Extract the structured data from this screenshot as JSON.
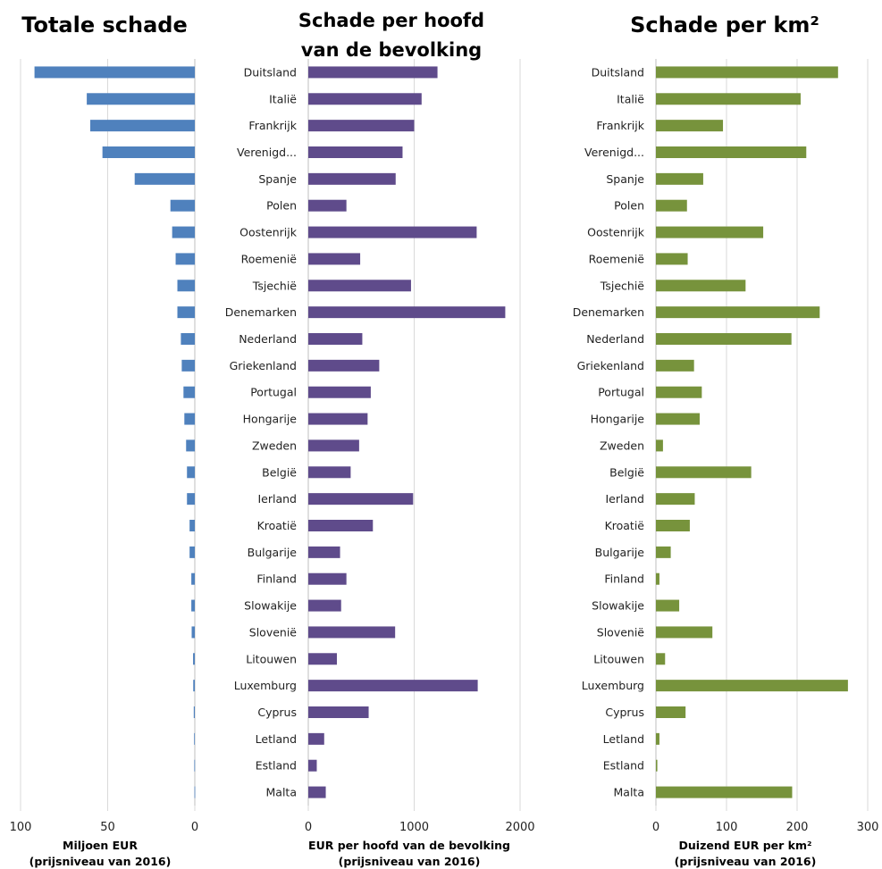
{
  "chart_data": [
    {
      "type": "bar",
      "orientation": "horizontal",
      "title": "Totale schade",
      "xlabel": "Miljoen EUR",
      "xlabel_sub": "(prijsniveau van 2016)",
      "xlim": [
        100,
        0
      ],
      "ticks": [
        100,
        50,
        0
      ],
      "reversed": true,
      "color": "#4F81BD",
      "categories": [
        "Duitsland",
        "Italië",
        "Frankrijk",
        "Verenigd...",
        "Spanje",
        "Polen",
        "Oostenrijk",
        "Roemenië",
        "Tsjechië",
        "Denemarken",
        "Nederland",
        "Griekenland",
        "Portugal",
        "Hongarije",
        "Zweden",
        "België",
        "Ierland",
        "Kroatië",
        "Bulgarije",
        "Finland",
        "Slowakije",
        "Slovenië",
        "Litouwen",
        "Luxemburg",
        "Cyprus",
        "Letland",
        "Estland",
        "Malta"
      ],
      "values": [
        92,
        62,
        60,
        53,
        34.5,
        14,
        13,
        11,
        10,
        10,
        8,
        7.5,
        6.5,
        6,
        5,
        4.5,
        4.5,
        3,
        3,
        2,
        2,
        1.8,
        1,
        0.9,
        0.6,
        0.4,
        0.3,
        0.2
      ],
      "grid": true
    },
    {
      "type": "bar",
      "orientation": "horizontal",
      "title": "Schade per hoofd van de bevolking",
      "title_lines": [
        "Schade per hoofd",
        "van de bevolking"
      ],
      "xlabel": "EUR per hoofd van de bevolking",
      "xlabel_sub": "(prijsniveau van 2016)",
      "xlim": [
        0,
        2000
      ],
      "ticks": [
        0,
        1000,
        2000
      ],
      "color": "#5F4B8B",
      "categories": [
        "Duitsland",
        "Italië",
        "Frankrijk",
        "Verenigd...",
        "Spanje",
        "Polen",
        "Oostenrijk",
        "Roemenië",
        "Tsjechië",
        "Denemarken",
        "Nederland",
        "Griekenland",
        "Portugal",
        "Hongarije",
        "Zweden",
        "België",
        "Ierland",
        "Kroatië",
        "Bulgarije",
        "Finland",
        "Slowakije",
        "Slovenië",
        "Litouwen",
        "Luxemburg",
        "Cyprus",
        "Letland",
        "Estland",
        "Malta"
      ],
      "values": [
        1220,
        1070,
        1000,
        890,
        825,
        360,
        1590,
        490,
        970,
        1860,
        510,
        670,
        590,
        560,
        480,
        400,
        990,
        610,
        300,
        360,
        310,
        820,
        270,
        1600,
        570,
        150,
        80,
        165
      ],
      "grid": true
    },
    {
      "type": "bar",
      "orientation": "horizontal",
      "title": "Schade per km²",
      "xlabel": "Duizend EUR per km²",
      "xlabel_sub": "(prijsniveau van 2016)",
      "xlim": [
        0,
        300
      ],
      "ticks": [
        0,
        100,
        200,
        300
      ],
      "color": "#77933C",
      "categories": [
        "Duitsland",
        "Italië",
        "Frankrijk",
        "Verenigd...",
        "Spanje",
        "Polen",
        "Oostenrijk",
        "Roemenië",
        "Tsjechië",
        "Denemarken",
        "Nederland",
        "Griekenland",
        "Portugal",
        "Hongarije",
        "Zweden",
        "België",
        "Ierland",
        "Kroatië",
        "Bulgarije",
        "Finland",
        "Slowakije",
        "Slovenië",
        "Litouwen",
        "Luxemburg",
        "Cyprus",
        "Letland",
        "Estland",
        "Malta"
      ],
      "values": [
        258,
        205,
        95,
        213,
        67,
        44,
        152,
        45,
        127,
        232,
        192,
        54,
        65,
        62,
        10,
        135,
        55,
        48,
        21,
        5,
        33,
        80,
        13,
        272,
        42,
        5,
        2,
        193
      ],
      "grid": true
    }
  ]
}
